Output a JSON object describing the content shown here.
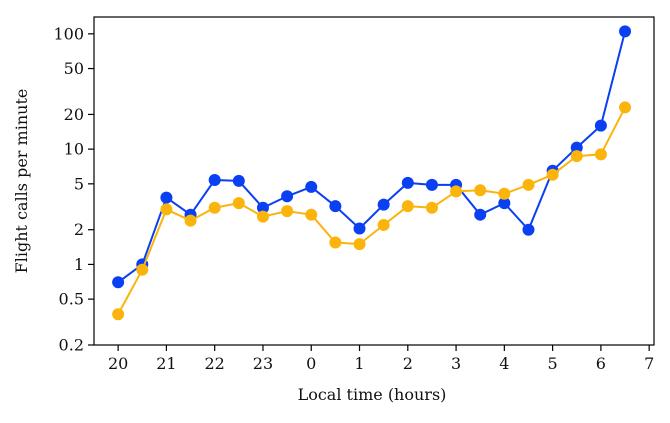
{
  "chart_data": {
    "type": "line",
    "xlabel": "Local time (hours)",
    "ylabel": "Flight calls per minute",
    "yscale": "log",
    "ylim": [
      0.2,
      140
    ],
    "xlim": [
      19.5,
      31.1
    ],
    "grid": false,
    "x_ticks": [
      {
        "value": 20,
        "label": "20"
      },
      {
        "value": 21,
        "label": "21"
      },
      {
        "value": 22,
        "label": "22"
      },
      {
        "value": 23,
        "label": "23"
      },
      {
        "value": 24,
        "label": "0"
      },
      {
        "value": 25,
        "label": "1"
      },
      {
        "value": 26,
        "label": "2"
      },
      {
        "value": 27,
        "label": "3"
      },
      {
        "value": 28,
        "label": "4"
      },
      {
        "value": 29,
        "label": "5"
      },
      {
        "value": 30,
        "label": "6"
      },
      {
        "value": 31,
        "label": "7"
      }
    ],
    "y_ticks": [
      {
        "value": 0.2,
        "label": "0.2"
      },
      {
        "value": 0.5,
        "label": "0.5"
      },
      {
        "value": 1,
        "label": "1"
      },
      {
        "value": 2,
        "label": "2"
      },
      {
        "value": 5,
        "label": "5"
      },
      {
        "value": 10,
        "label": "10"
      },
      {
        "value": 20,
        "label": "20"
      },
      {
        "value": 50,
        "label": "50"
      },
      {
        "value": 100,
        "label": "100"
      }
    ],
    "x": [
      20,
      20.5,
      21,
      21.5,
      22,
      22.5,
      23,
      23.5,
      24,
      24.5,
      25,
      25.5,
      26,
      26.5,
      27,
      27.5,
      28,
      28.5,
      29,
      29.5,
      30,
      30.5
    ],
    "series": [
      {
        "color": "#0a3ff2",
        "values": [
          0.7,
          1.0,
          3.8,
          2.7,
          5.4,
          5.3,
          3.1,
          3.9,
          4.7,
          3.2,
          2.05,
          3.3,
          5.1,
          4.9,
          4.9,
          2.7,
          3.4,
          2.0,
          6.5,
          10.3,
          16.0,
          105
        ]
      },
      {
        "color": "#fbb40b",
        "values": [
          0.37,
          0.9,
          3.0,
          2.4,
          3.1,
          3.4,
          2.6,
          2.9,
          2.7,
          1.55,
          1.5,
          2.2,
          3.2,
          3.1,
          4.3,
          4.4,
          4.1,
          4.9,
          6.0,
          8.7,
          9.0,
          23.0
        ]
      }
    ]
  }
}
